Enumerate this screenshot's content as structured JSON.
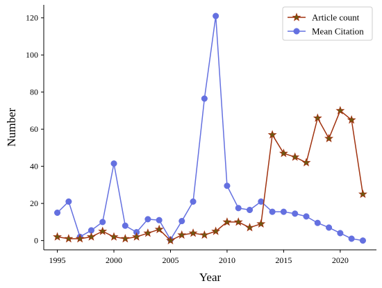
{
  "chart_data": {
    "type": "line",
    "title": "",
    "xlabel": "Year",
    "ylabel": "Number",
    "xlim": [
      1993.8,
      2023.2
    ],
    "ylim": [
      -5,
      127
    ],
    "xticks": [
      1995,
      2000,
      2005,
      2010,
      2015,
      2020
    ],
    "yticks": [
      0,
      20,
      40,
      60,
      80,
      100,
      120
    ],
    "grid": false,
    "legend_position": "top-right",
    "x": [
      1995,
      1996,
      1997,
      1998,
      1999,
      2000,
      2001,
      2002,
      2003,
      2004,
      2005,
      2006,
      2007,
      2008,
      2009,
      2010,
      2011,
      2012,
      2013,
      2014,
      2015,
      2016,
      2017,
      2018,
      2019,
      2020,
      2021,
      2022
    ],
    "series": [
      {
        "name": "Article count",
        "color": "#a0320f",
        "marker": "star",
        "values": [
          2,
          1,
          1,
          2,
          5,
          2,
          1,
          2,
          4,
          6,
          0,
          3,
          4,
          3,
          5,
          10,
          10,
          7,
          9,
          57,
          47,
          45,
          42,
          66,
          55,
          70,
          65,
          25
        ]
      },
      {
        "name": "Mean Citation",
        "color": "#6470e0",
        "marker": "circle",
        "values": [
          15,
          21,
          2,
          5.5,
          10,
          41.5,
          8,
          4.5,
          11.5,
          11,
          0.5,
          10.5,
          21,
          76.5,
          121,
          29.5,
          17.5,
          16.5,
          21,
          15.5,
          15.5,
          14.5,
          13,
          9.5,
          7,
          4,
          1,
          0
        ]
      }
    ]
  }
}
